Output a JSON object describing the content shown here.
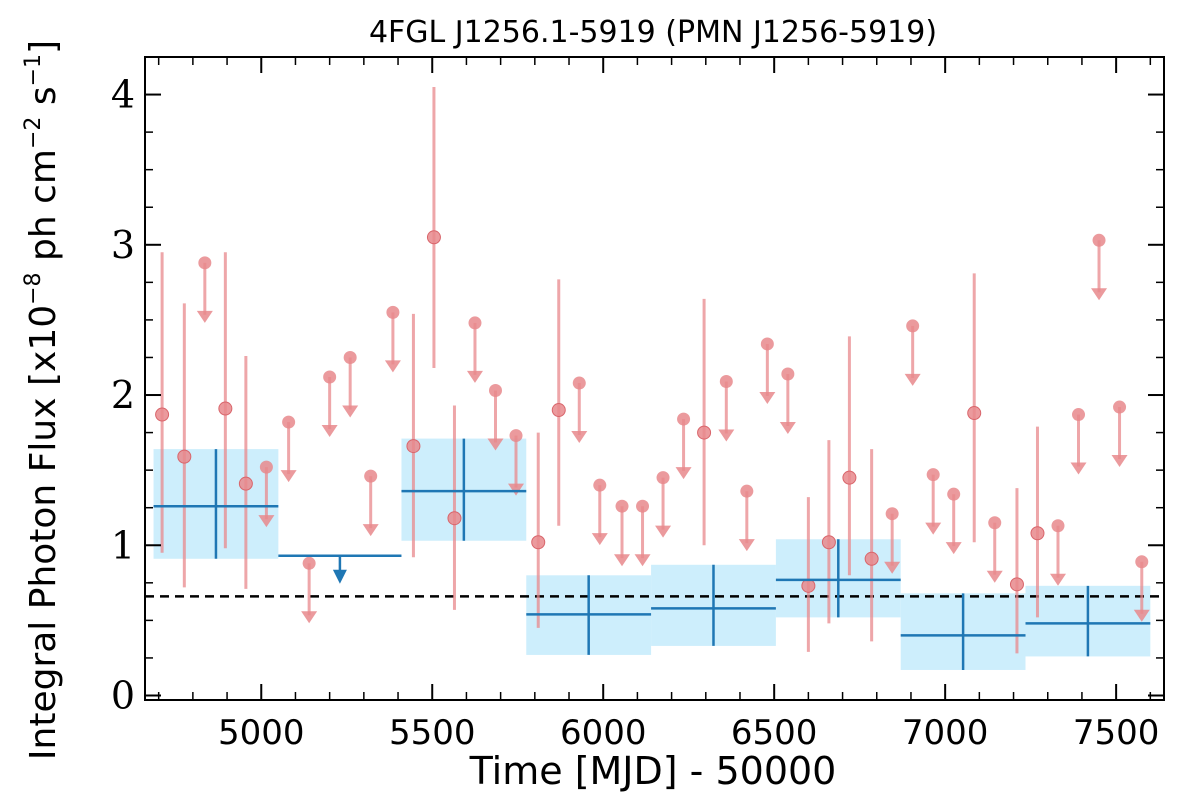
{
  "chart_data": {
    "type": "scatter",
    "title": "4FGL J1256.1-5919 (PMN J1256-5919)",
    "xlabel": "Time [MJD] - 50000",
    "ylabel": {
      "prefix": "Integral Photon Flux [x10",
      "exp1": "−8",
      "mid1": " ph cm",
      "exp2": "−2",
      "mid2": " s",
      "exp3": "−1",
      "suffix": "]"
    },
    "xlim": [
      4660,
      7640
    ],
    "ylim": [
      -0.03,
      4.25
    ],
    "xticks": [
      5000,
      5500,
      6000,
      6500,
      7000,
      7500
    ],
    "xtick_labels": [
      "5000",
      "5500",
      "6000",
      "6500",
      "7000",
      "7500"
    ],
    "yticks": [
      0,
      1,
      2,
      3,
      4
    ],
    "ytick_labels": [
      "0",
      "1",
      "2",
      "3",
      "4"
    ],
    "grid": false,
    "colors": {
      "short_bins": "#e8888c",
      "long_bins": "#1f77b4",
      "long_bin_band": "#cdeefc",
      "mean_line": "#000000"
    },
    "mean_flux": 0.66,
    "short_bins": {
      "detections": [
        {
          "x": 4710,
          "y": 1.87,
          "ylo": 0.95,
          "yhi": 2.95
        },
        {
          "x": 4775,
          "y": 1.59,
          "ylo": 0.72,
          "yhi": 2.61
        },
        {
          "x": 4895,
          "y": 1.91,
          "ylo": 0.98,
          "yhi": 2.95
        },
        {
          "x": 4955,
          "y": 1.41,
          "ylo": 0.71,
          "yhi": 2.26
        },
        {
          "x": 5445,
          "y": 1.66,
          "ylo": 0.92,
          "yhi": 2.54
        },
        {
          "x": 5505,
          "y": 3.05,
          "ylo": 2.18,
          "yhi": 4.05
        },
        {
          "x": 5565,
          "y": 1.18,
          "ylo": 0.57,
          "yhi": 1.93
        },
        {
          "x": 5810,
          "y": 1.02,
          "ylo": 0.45,
          "yhi": 1.75
        },
        {
          "x": 5870,
          "y": 1.9,
          "ylo": 1.13,
          "yhi": 2.77
        },
        {
          "x": 6295,
          "y": 1.75,
          "ylo": 1.0,
          "yhi": 2.64
        },
        {
          "x": 6600,
          "y": 0.73,
          "ylo": 0.29,
          "yhi": 1.32
        },
        {
          "x": 6660,
          "y": 1.02,
          "ylo": 0.48,
          "yhi": 1.7
        },
        {
          "x": 6720,
          "y": 1.45,
          "ylo": 0.8,
          "yhi": 2.39
        },
        {
          "x": 6785,
          "y": 0.91,
          "ylo": 0.36,
          "yhi": 1.64
        },
        {
          "x": 7085,
          "y": 1.88,
          "ylo": 1.02,
          "yhi": 2.81
        },
        {
          "x": 7210,
          "y": 0.74,
          "ylo": 0.28,
          "yhi": 1.38
        },
        {
          "x": 7270,
          "y": 1.08,
          "ylo": 0.52,
          "yhi": 1.79
        }
      ],
      "upper_limits": [
        {
          "x": 4835,
          "y": 2.88
        },
        {
          "x": 5015,
          "y": 1.52
        },
        {
          "x": 5080,
          "y": 1.82
        },
        {
          "x": 5140,
          "y": 0.88
        },
        {
          "x": 5200,
          "y": 2.12
        },
        {
          "x": 5260,
          "y": 2.25
        },
        {
          "x": 5320,
          "y": 1.46
        },
        {
          "x": 5385,
          "y": 2.55
        },
        {
          "x": 5625,
          "y": 2.48
        },
        {
          "x": 5685,
          "y": 2.03
        },
        {
          "x": 5745,
          "y": 1.73
        },
        {
          "x": 5930,
          "y": 2.08
        },
        {
          "x": 5990,
          "y": 1.4
        },
        {
          "x": 6055,
          "y": 1.26
        },
        {
          "x": 6115,
          "y": 1.26
        },
        {
          "x": 6175,
          "y": 1.45
        },
        {
          "x": 6235,
          "y": 1.84
        },
        {
          "x": 6360,
          "y": 2.09
        },
        {
          "x": 6420,
          "y": 1.36
        },
        {
          "x": 6480,
          "y": 2.34
        },
        {
          "x": 6540,
          "y": 2.14
        },
        {
          "x": 6845,
          "y": 1.21
        },
        {
          "x": 6905,
          "y": 2.46
        },
        {
          "x": 6965,
          "y": 1.47
        },
        {
          "x": 7025,
          "y": 1.34
        },
        {
          "x": 7145,
          "y": 1.15
        },
        {
          "x": 7330,
          "y": 1.13
        },
        {
          "x": 7390,
          "y": 1.87
        },
        {
          "x": 7450,
          "y": 3.03
        },
        {
          "x": 7510,
          "y": 1.92
        },
        {
          "x": 7575,
          "y": 0.89
        }
      ]
    },
    "long_bins": {
      "detections": [
        {
          "x0": 4685,
          "x1": 5050,
          "y": 1.26,
          "ylo": 0.91,
          "yhi": 1.64
        },
        {
          "x0": 5410,
          "x1": 5775,
          "y": 1.36,
          "ylo": 1.03,
          "yhi": 1.71
        },
        {
          "x0": 5775,
          "x1": 6140,
          "y": 0.54,
          "ylo": 0.27,
          "yhi": 0.8
        },
        {
          "x0": 6140,
          "x1": 6505,
          "y": 0.58,
          "ylo": 0.33,
          "yhi": 0.87
        },
        {
          "x0": 6505,
          "x1": 6870,
          "y": 0.77,
          "ylo": 0.52,
          "yhi": 1.04
        },
        {
          "x0": 6870,
          "x1": 7235,
          "y": 0.4,
          "ylo": 0.17,
          "yhi": 0.68
        },
        {
          "x0": 7235,
          "x1": 7600,
          "y": 0.48,
          "ylo": 0.26,
          "yhi": 0.73
        }
      ],
      "upper_limits": [
        {
          "x0": 5050,
          "x1": 5410,
          "y": 0.93
        }
      ]
    }
  }
}
